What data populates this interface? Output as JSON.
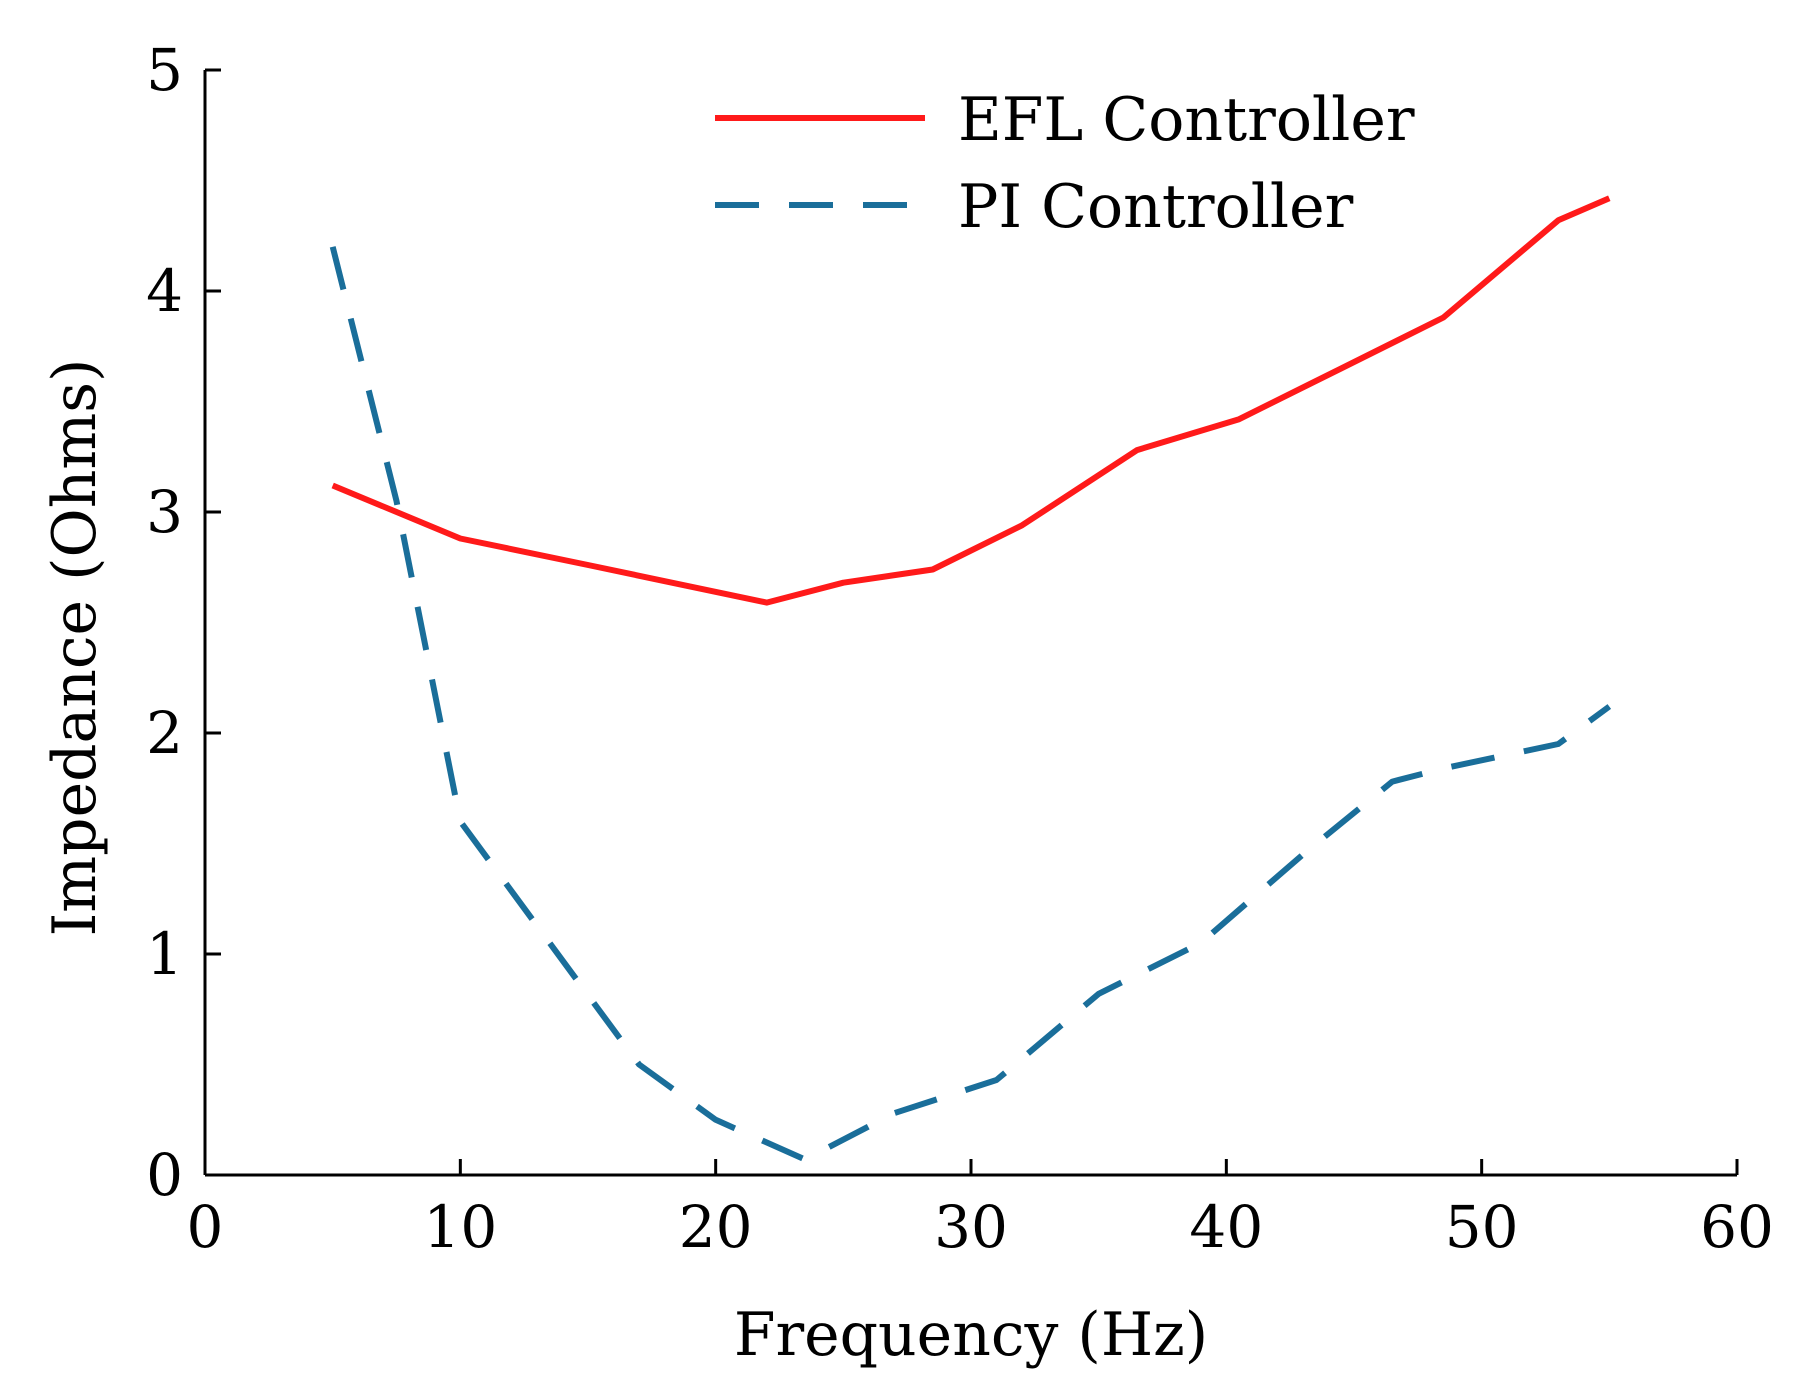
{
  "chart_data": {
    "type": "line",
    "title": "",
    "xlabel": "Frequency (Hz)",
    "ylabel": "Impedance (Ohms)",
    "xlim": [
      0,
      60
    ],
    "ylim": [
      0,
      5
    ],
    "xticks": [
      "0",
      "10",
      "20",
      "30",
      "40",
      "50",
      "60"
    ],
    "yticks": [
      "0",
      "1",
      "2",
      "3",
      "4",
      "5"
    ],
    "grid": false,
    "legend_position": "top-right",
    "series": [
      {
        "name": "EFL Controller",
        "color": "#ff1a1a",
        "style": "solid",
        "x": [
          5,
          10,
          15,
          22,
          25,
          28.5,
          32,
          36.5,
          40.5,
          44.5,
          48.5,
          53,
          55
        ],
        "y": [
          3.12,
          2.88,
          2.76,
          2.59,
          2.68,
          2.74,
          2.94,
          3.28,
          3.42,
          3.65,
          3.88,
          4.32,
          4.42
        ]
      },
      {
        "name": "PI Controller",
        "color": "#1a6e9a",
        "style": "dashed",
        "x": [
          5,
          7.5,
          10,
          13.5,
          17,
          20,
          23.5,
          27,
          31,
          35,
          39,
          43,
          46.5,
          48.5,
          53,
          55
        ],
        "y": [
          4.2,
          3.05,
          1.6,
          1.05,
          0.5,
          0.25,
          0.07,
          0.28,
          0.43,
          0.82,
          1.05,
          1.45,
          1.78,
          1.84,
          1.95,
          2.12
        ]
      }
    ]
  }
}
